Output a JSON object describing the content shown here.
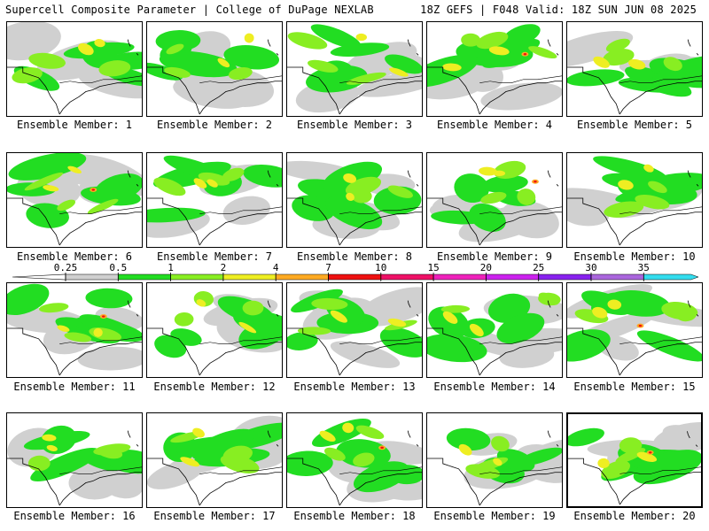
{
  "header": {
    "title": "Supercell Composite Parameter | College of DuPage NEXLAB",
    "run_info": "18Z GEFS | F048 Valid: 18Z SUN JUN 08 2025"
  },
  "members": [
    {
      "label": "Ensemble Member: 1"
    },
    {
      "label": "Ensemble Member: 2"
    },
    {
      "label": "Ensemble Member: 3"
    },
    {
      "label": "Ensemble Member: 4"
    },
    {
      "label": "Ensemble Member: 5"
    },
    {
      "label": "Ensemble Member: 6"
    },
    {
      "label": "Ensemble Member: 7"
    },
    {
      "label": "Ensemble Member: 8"
    },
    {
      "label": "Ensemble Member: 9"
    },
    {
      "label": "Ensemble Member: 10"
    },
    {
      "label": "Ensemble Member: 11"
    },
    {
      "label": "Ensemble Member: 12"
    },
    {
      "label": "Ensemble Member: 13"
    },
    {
      "label": "Ensemble Member: 14"
    },
    {
      "label": "Ensemble Member: 15"
    },
    {
      "label": "Ensemble Member: 16"
    },
    {
      "label": "Ensemble Member: 17"
    },
    {
      "label": "Ensemble Member: 18"
    },
    {
      "label": "Ensemble Member: 19"
    },
    {
      "label": "Ensemble Member: 20",
      "selected": true
    }
  ],
  "legend": {
    "thresholds": [
      "0.25",
      "0.5",
      "1",
      "2",
      "4",
      "7",
      "10",
      "15",
      "20",
      "25",
      "30",
      "35"
    ],
    "colors": [
      "#d0d0d0",
      "#22dd22",
      "#88ee22",
      "#eeee22",
      "#ffaa22",
      "#ee1111",
      "#ee1166",
      "#ee22bb",
      "#cc22ee",
      "#8822ee",
      "#aa66dd",
      "#33ddee"
    ]
  },
  "map_colors": {
    "shade_low": "#d0d0d0",
    "shade_green": "#22dd22",
    "shade_lime": "#88ee22",
    "shade_yellow": "#eeee22",
    "shade_orange": "#ffaa22",
    "shade_red": "#ee1111",
    "coast": "#000000"
  }
}
